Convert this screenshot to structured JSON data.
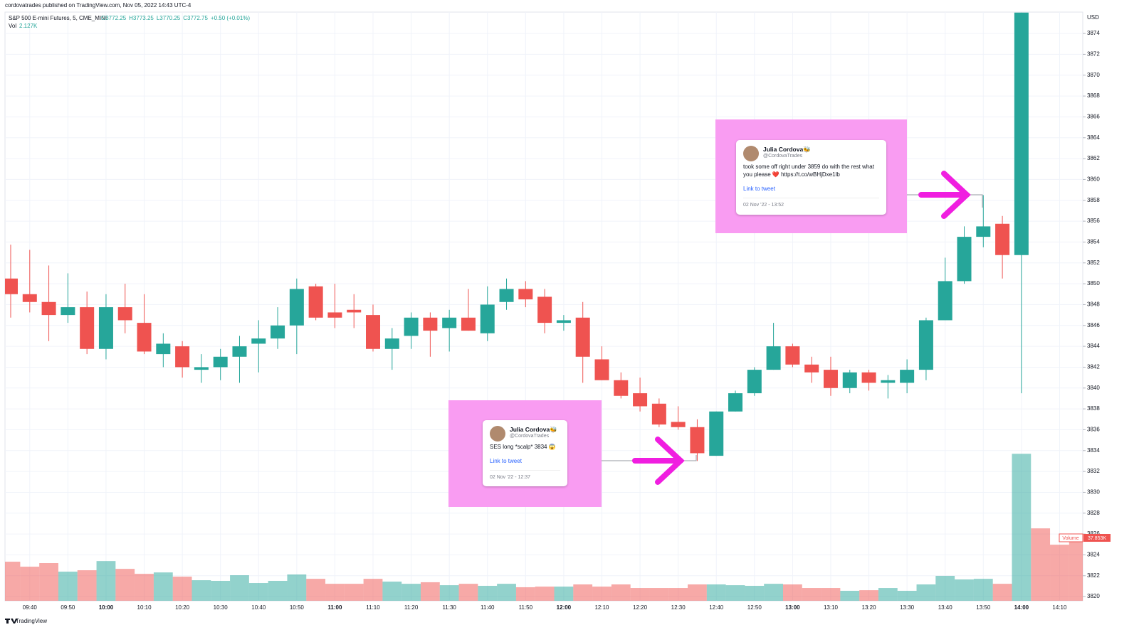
{
  "chart_data": {
    "type": "candlestick",
    "published": "cordovatrades published on TradingView.com, Nov 05, 2022 14:43 UTC-4",
    "symbol": "S&P 500 E-mini Futures, 5, CME_MINI",
    "ohlc_header": [
      "O3772.25",
      "H3773.25",
      "L3770.25",
      "C3772.75",
      "+0.50 (+0.01%)"
    ],
    "vol_header": [
      "Vol",
      "2.127K"
    ],
    "currency": "USD",
    "brand": "TradingView",
    "volume_label": [
      "Volume",
      "37.853K"
    ],
    "categories": [
      null,
      "09:40",
      null,
      "09:50",
      null,
      "10:00",
      null,
      "10:10",
      null,
      "10:20",
      null,
      "10:30",
      null,
      "10:40",
      null,
      "10:50",
      null,
      "11:00",
      null,
      "11:10",
      null,
      "11:20",
      null,
      "11:30",
      null,
      "11:40",
      null,
      "11:50",
      null,
      "12:00",
      null,
      "12:10",
      null,
      "12:20",
      null,
      "12:30",
      null,
      "12:40",
      null,
      "12:50",
      null,
      "13:00",
      null,
      "13:10",
      null,
      "13:20",
      null,
      "13:30",
      null,
      "13:40",
      null,
      "13:50",
      null,
      "14:00",
      null,
      "14:10",
      null
    ],
    "open": [
      3850.5,
      3849,
      3848.25,
      3847,
      3847.75,
      3843.75,
      3847.75,
      3846.25,
      3843.25,
      3844,
      3841.75,
      3842,
      3843,
      3844.25,
      3844.75,
      3846,
      3849.75,
      3847.25,
      3847.5,
      3847,
      3843.75,
      3845,
      3846.75,
      3845.75,
      3846.75,
      3845.25,
      3848.25,
      3849.5,
      3848.75,
      3846.25,
      3846.75,
      3842.75,
      3840.75,
      3839.5,
      3838.5,
      3836.75,
      3836.25,
      3833.5,
      3837.75,
      3839.5,
      3841.75,
      3844,
      3842.25,
      3841.75,
      3840,
      3841.5,
      3840.5,
      3840.5,
      3841.75,
      3846.5,
      3850.25,
      3854.5,
      3855.75,
      3852.75,
      null,
      null,
      null
    ],
    "high": [
      3853.75,
      3853.25,
      3851.75,
      3851,
      3849.25,
      3849,
      3850,
      3849,
      3845.25,
      3844.5,
      3843.25,
      3843.75,
      3845,
      3846.5,
      3847.75,
      3850.5,
      3850,
      3850,
      3849,
      3848,
      3845.75,
      3847.25,
      3847.25,
      3847.5,
      3849.5,
      3849.75,
      3850.5,
      3850.25,
      3849.5,
      3847,
      3848.25,
      3844,
      3841.5,
      3841,
      3839,
      3838.25,
      3837,
      3837.75,
      3839.75,
      3842,
      3846.25,
      3844.25,
      3843,
      3843,
      3841.75,
      3841.75,
      3841.25,
      3842.75,
      3846.75,
      3852.5,
      3855.5,
      3858.5,
      3856.5,
      3876,
      null,
      null,
      null
    ],
    "low": [
      3846.75,
      3847.25,
      3844.5,
      3846.25,
      3843.25,
      3842.75,
      3845.25,
      3843.25,
      3842,
      3841,
      3840.5,
      3840.75,
      3840.5,
      3841.5,
      3843.75,
      3843.25,
      3846.5,
      3845.75,
      3845.75,
      3843.5,
      3841.75,
      3843.75,
      3843,
      3843.5,
      3845.5,
      3844.5,
      3847.5,
      3847.75,
      3845.25,
      3845.5,
      3840.5,
      3840.75,
      3839,
      3837.75,
      3836.25,
      3836,
      3833,
      3833.5,
      3837.75,
      3839.25,
      3841.75,
      3842,
      3840.5,
      3839.25,
      3839.5,
      3839.75,
      3839,
      3839.5,
      3840.75,
      3846.5,
      3850,
      3853.5,
      3850.5,
      3839.5,
      null,
      null,
      null
    ],
    "close": [
      3849,
      3848.25,
      3847,
      3847.75,
      3843.75,
      3847.75,
      3846.5,
      3843.5,
      3844.25,
      3842,
      3842,
      3843,
      3844,
      3844.75,
      3846,
      3849.5,
      3846.75,
      3846.75,
      3847.25,
      3843.75,
      3844.75,
      3846.75,
      3845.5,
      3846.75,
      3845.5,
      3848,
      3849.5,
      3848.5,
      3846.25,
      3846.5,
      3843,
      3840.75,
      3839.25,
      3838.25,
      3836.5,
      3836.25,
      3833.75,
      3837.75,
      3839.5,
      3841.75,
      3844,
      3842.25,
      3841.5,
      3840,
      3841.5,
      3840.5,
      3840.75,
      3841.75,
      3846.5,
      3850.25,
      3854.5,
      3855.5,
      3852.75,
      3876,
      null,
      null,
      null
    ],
    "volume": [
      25.1,
      21.9,
      24.2,
      18.7,
      19.6,
      25.5,
      20.5,
      17.3,
      18.2,
      15.5,
      13.2,
      12.8,
      16.4,
      11.4,
      12.8,
      16.9,
      14.1,
      10.9,
      10.9,
      14.1,
      12.3,
      10.9,
      11.9,
      10.0,
      10.9,
      9.6,
      10.9,
      8.7,
      9.1,
      9.1,
      10.5,
      9.1,
      10.5,
      8.2,
      8.2,
      8.2,
      10.5,
      10.5,
      10.0,
      9.6,
      10.9,
      10.5,
      8.2,
      8.2,
      6.4,
      6.8,
      8.2,
      6.4,
      10.5,
      16.0,
      13.7,
      14.1,
      10.9,
      94.4,
      46.5,
      36.0,
      37.853
    ],
    "vlim": [
      0,
      100
    ],
    "ylim": [
      3819.6,
      3876.05
    ],
    "yticks": [
      3820,
      3822,
      3824,
      3826,
      3828,
      3830,
      3832,
      3834,
      3836,
      3838,
      3840,
      3842,
      3844,
      3846,
      3848,
      3850,
      3852,
      3854,
      3856,
      3858,
      3860,
      3862,
      3864,
      3866,
      3868,
      3870,
      3872,
      3874
    ],
    "grid": true,
    "up_color": "#26a69a",
    "down_color": "#ef5350",
    "annotations": [
      {
        "author": "Julia Cordova🐝",
        "handle": "@CordovaTrades",
        "text": "took some off right under 3859 do with the rest what you please ❤️ https://t.co/wBHjDxe1lb",
        "link": "Link to tweet",
        "date": "02 Nov '22 - 13:52"
      },
      {
        "author": "Julia Cordova🐝",
        "handle": "@CordovaTrades",
        "text": "SES long *scalp* 3834 😱",
        "link": "Link to tweet",
        "date": "02 Nov '22 - 12:37"
      }
    ]
  }
}
